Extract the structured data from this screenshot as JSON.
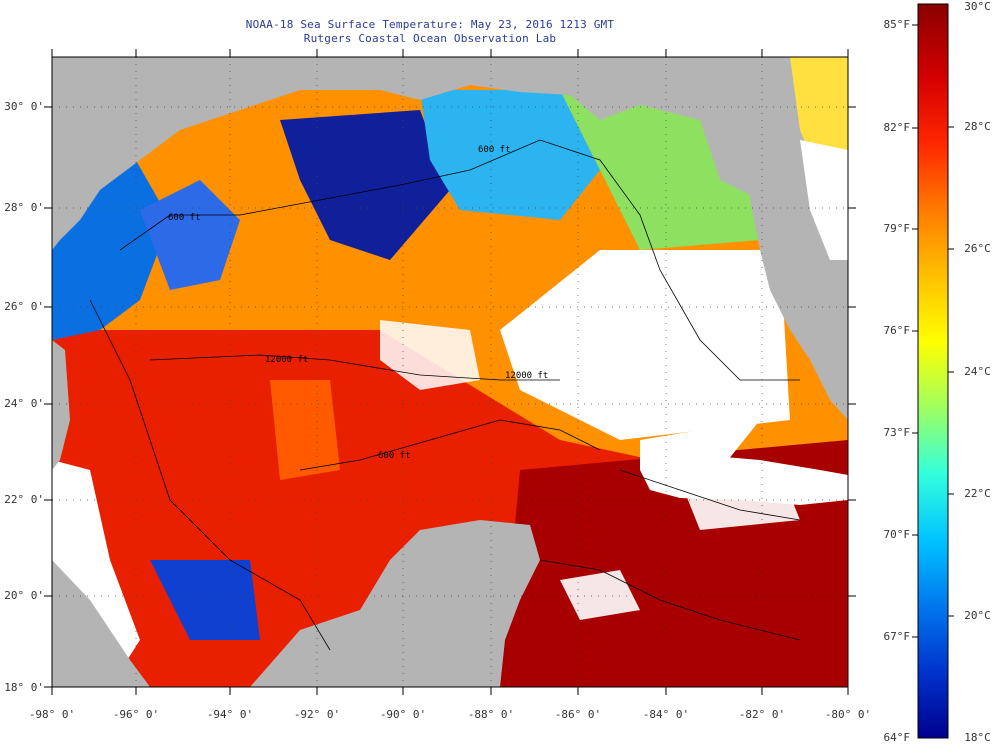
{
  "title": {
    "line1": "NOAA-18 Sea Surface Temperature:  May 23, 2016 1213 GMT",
    "line2": "Rutgers Coastal Ocean Observation Lab"
  },
  "latitude_labels": [
    "30° 0'",
    "28° 0'",
    "26° 0'",
    "24° 0'",
    "22° 0'",
    "20° 0'",
    "18° 0'"
  ],
  "longitude_labels": [
    "-98° 0'",
    "-96° 0'",
    "-94° 0'",
    "-92° 0'",
    "-90° 0'",
    "-88° 0'",
    "-86° 0'",
    "-84° 0'",
    "-82° 0'",
    "-80° 0'"
  ],
  "colorbar": {
    "fahrenheit_labels": [
      "85°F",
      "82°F",
      "79°F",
      "76°F",
      "73°F",
      "70°F",
      "67°F",
      "64°F"
    ],
    "celsius_labels": [
      "30°C",
      "28°C",
      "26°C",
      "24°C",
      "22°C",
      "20°C",
      "18°C"
    ],
    "min_c": 18,
    "max_c": 30,
    "colors": [
      "#00008f",
      "#0033cc",
      "#0077ee",
      "#00c4ff",
      "#33ffdd",
      "#a0ff60",
      "#ffff00",
      "#ffc000",
      "#ff7a00",
      "#ff2600",
      "#d40000",
      "#8a0000"
    ]
  },
  "isobath_labels": [
    "600 ft",
    "600 ft",
    "12000 ft",
    "12000 ft",
    "600 ft"
  ],
  "colors": {
    "land": "#b4b4b4",
    "cloud": "#ffffff",
    "coast": "#000000",
    "title": "#2a3a9a"
  }
}
